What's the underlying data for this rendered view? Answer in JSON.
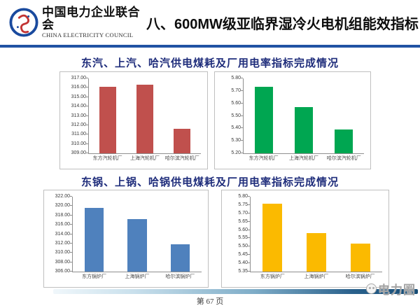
{
  "header": {
    "org_name": "中国电力企业联合会",
    "org_name_en": "CHINA ELECTRICITY COUNCIL",
    "title": "八、600MW级亚临界湿冷火电机组能效指标"
  },
  "sections": [
    {
      "title": "东汽、上汽、哈汽供电煤耗及厂用电率指标完成情况"
    },
    {
      "title": "东锅、上锅、哈锅供电煤耗及厂用电率指标完成情况"
    }
  ],
  "chart_data": [
    {
      "type": "bar",
      "panel": "top-left",
      "group_title": "东汽、上汽、哈汽供电煤耗及厂用电率指标完成情况",
      "categories": [
        "东方汽轮机厂",
        "上海汽轮机厂",
        "哈尔滨汽轮机厂"
      ],
      "values": [
        316.1,
        316.3,
        311.6
      ],
      "color": "#C0504D",
      "ylim": [
        309,
        317
      ],
      "ytick_step": 1,
      "ytick_decimals": 2,
      "grid": false,
      "legend": "none"
    },
    {
      "type": "bar",
      "panel": "top-right",
      "group_title": "东汽、上汽、哈汽供电煤耗及厂用电率指标完成情况",
      "categories": [
        "东方汽轮机厂",
        "上海汽轮机厂",
        "哈尔滨汽轮机厂"
      ],
      "values": [
        5.73,
        5.57,
        5.39
      ],
      "color": "#00A651",
      "ylim": [
        5.2,
        5.8
      ],
      "ytick_step": 0.1,
      "ytick_decimals": 2,
      "grid": false,
      "legend": "none"
    },
    {
      "type": "bar",
      "panel": "bottom-left",
      "group_title": "东锅、上锅、哈锅供电煤耗及厂用电率指标完成情况",
      "categories": [
        "东方锅炉厂",
        "上海锅炉厂",
        "哈尔滨锅炉厂"
      ],
      "values": [
        319.6,
        317.2,
        311.9
      ],
      "color": "#4F81BD",
      "ylim": [
        306,
        322
      ],
      "ytick_step": 2,
      "ytick_decimals": 2,
      "grid": false,
      "legend": "none"
    },
    {
      "type": "bar",
      "panel": "bottom-right",
      "group_title": "东锅、上锅、哈锅供电煤耗及厂用电率指标完成情况",
      "categories": [
        "东方锅炉厂",
        "上海锅炉厂",
        "哈尔滨锅炉厂"
      ],
      "values": [
        5.76,
        5.58,
        5.52
      ],
      "color": "#FBBA00",
      "ylim": [
        5.35,
        5.8
      ],
      "ytick_step": 0.05,
      "ytick_decimals": 2,
      "grid": false,
      "legend": "none"
    }
  ],
  "footer": {
    "page_label": "第 67 页",
    "watermark": "电力圈"
  },
  "colors": {
    "header_rule": "#2153a3",
    "section_title": "#1f2d7b",
    "bar_red": "#C0504D",
    "bar_green": "#00A651",
    "bar_blue": "#4F81BD",
    "bar_yellow": "#FBBA00",
    "footer_rule_dark": "#154b74"
  }
}
